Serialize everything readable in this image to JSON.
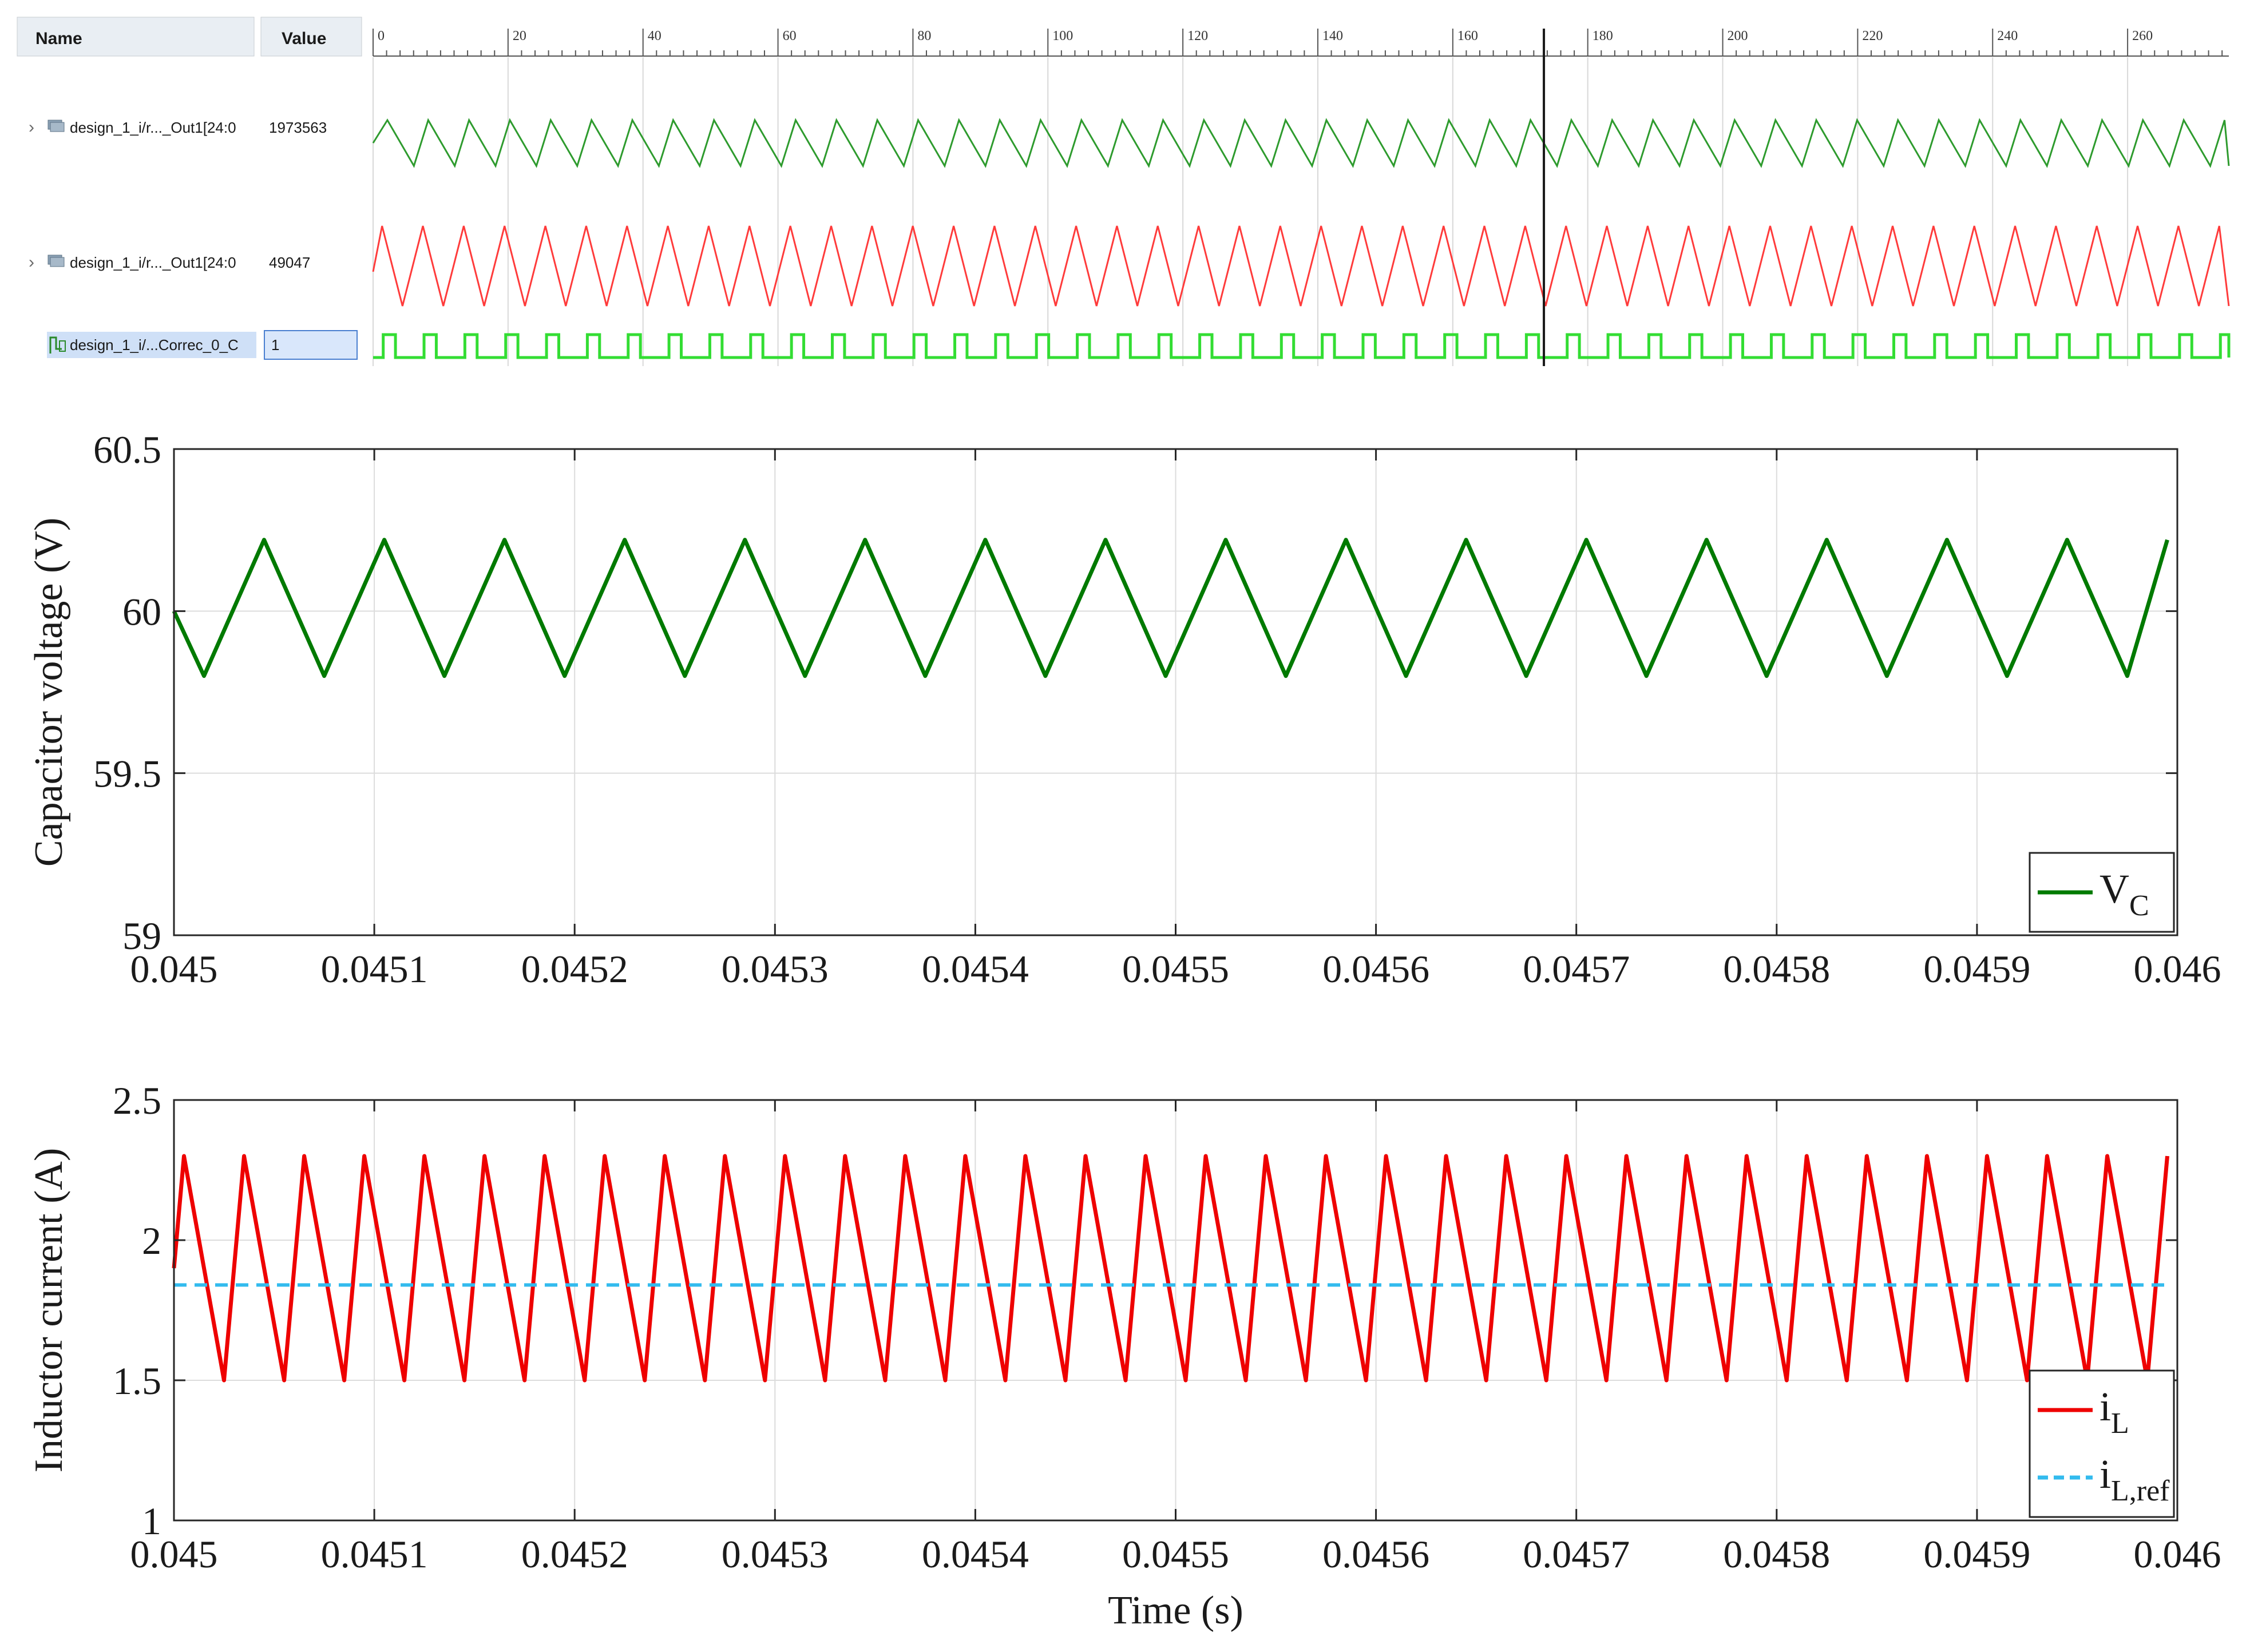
{
  "waveform_viewer": {
    "header": {
      "name_label": "Name",
      "value_label": "Value"
    },
    "ruler_ticks": [
      "0",
      "20",
      "40",
      "60",
      "80",
      "100",
      "120",
      "140",
      "160",
      "180",
      "200",
      "220",
      "240",
      "260"
    ],
    "cursor_tick": 173.5,
    "signals": [
      {
        "name": "design_1_i/r..._Out1[24:0",
        "value": "1973563",
        "icon": "bus-icon",
        "expandable": true,
        "color": "#2e9b2e",
        "shape": "sawtooth-rising"
      },
      {
        "name": "design_1_i/r..._Out1[24:0",
        "value": "49047",
        "icon": "bus-icon",
        "expandable": true,
        "color": "#ff3b3b",
        "shape": "triangle"
      },
      {
        "name": "design_1_i/...Correc_0_C",
        "value": "1",
        "icon": "bit-icon",
        "expandable": false,
        "color": "#33dd33",
        "shape": "pulse",
        "selected": true
      }
    ],
    "waveform_period_ticks": 6.05,
    "waveform_range_ticks": [
      0,
      275
    ]
  },
  "chart_data": [
    {
      "type": "line",
      "title": "",
      "xlabel": "",
      "ylabel": "Capacitor voltage (V)",
      "xlim": [
        0.045,
        0.046
      ],
      "ylim": [
        59,
        60.5
      ],
      "x_ticks": [
        "0.045",
        "0.0451",
        "0.0452",
        "0.0453",
        "0.0454",
        "0.0455",
        "0.0456",
        "0.0457",
        "0.0458",
        "0.0459",
        "0.046"
      ],
      "y_ticks": [
        "59",
        "59.5",
        "60",
        "60.5"
      ],
      "grid": true,
      "legend_position": "bottom-right",
      "series": [
        {
          "name": "V",
          "subscript": "C",
          "color": "#007a00",
          "style": "solid",
          "x": [
            0.045,
            0.045015,
            0.045045,
            0.045075,
            0.045105,
            0.045135,
            0.045165,
            0.045195,
            0.045225,
            0.045255,
            0.045285,
            0.045315,
            0.045345,
            0.045375,
            0.045405,
            0.045435,
            0.045465,
            0.045495,
            0.045525,
            0.045555,
            0.045585,
            0.045615,
            0.045645,
            0.045675,
            0.045705,
            0.045735,
            0.045765,
            0.045795,
            0.045825,
            0.045855,
            0.045885,
            0.045915,
            0.045945,
            0.045975,
            0.045995
          ],
          "y": [
            60.0,
            59.8,
            60.22,
            59.8,
            60.22,
            59.8,
            60.22,
            59.8,
            60.22,
            59.8,
            60.22,
            59.8,
            60.22,
            59.8,
            60.22,
            59.8,
            60.22,
            59.8,
            60.22,
            59.8,
            60.22,
            59.8,
            60.22,
            59.8,
            60.22,
            59.8,
            60.22,
            59.8,
            60.22,
            59.8,
            60.22,
            59.8,
            60.22,
            59.8,
            60.22
          ]
        }
      ]
    },
    {
      "type": "line",
      "title": "",
      "xlabel": "Time (s)",
      "ylabel": "Inductor current (A)",
      "xlim": [
        0.045,
        0.046
      ],
      "ylim": [
        1,
        2.5
      ],
      "x_ticks": [
        "0.045",
        "0.0451",
        "0.0452",
        "0.0453",
        "0.0454",
        "0.0455",
        "0.0456",
        "0.0457",
        "0.0458",
        "0.0459",
        "0.046"
      ],
      "y_ticks": [
        "1",
        "1.5",
        "2",
        "2.5"
      ],
      "grid": true,
      "legend_position": "bottom-right",
      "series": [
        {
          "name": "i",
          "subscript": "L",
          "color": "#ee0000",
          "style": "solid",
          "x": [
            0.045,
            0.045005,
            0.045025,
            0.045035,
            0.045055,
            0.045065,
            0.045085,
            0.045095,
            0.045115,
            0.045125,
            0.045145,
            0.045155,
            0.045175,
            0.045185,
            0.045205,
            0.045215,
            0.045235,
            0.045245,
            0.045265,
            0.045275,
            0.045295,
            0.045305,
            0.045325,
            0.045335,
            0.045355,
            0.045365,
            0.045385,
            0.045395,
            0.045415,
            0.045425,
            0.045445,
            0.045455,
            0.045475,
            0.045485,
            0.045505,
            0.045515,
            0.045535,
            0.045545,
            0.045565,
            0.045575,
            0.045595,
            0.045605,
            0.045625,
            0.045635,
            0.045655,
            0.045665,
            0.045685,
            0.045695,
            0.045715,
            0.045725,
            0.045745,
            0.045755,
            0.045775,
            0.045785,
            0.045805,
            0.045815,
            0.045835,
            0.045845,
            0.045865,
            0.045875,
            0.045895,
            0.045905,
            0.045925,
            0.045935,
            0.045955,
            0.045965,
            0.045985,
            0.045995
          ],
          "y": [
            1.9,
            2.3,
            1.5,
            2.3,
            1.5,
            2.3,
            1.5,
            2.3,
            1.5,
            2.3,
            1.5,
            2.3,
            1.5,
            2.3,
            1.5,
            2.3,
            1.5,
            2.3,
            1.5,
            2.3,
            1.5,
            2.3,
            1.5,
            2.3,
            1.5,
            2.3,
            1.5,
            2.3,
            1.5,
            2.3,
            1.5,
            2.3,
            1.5,
            2.3,
            1.5,
            2.3,
            1.5,
            2.3,
            1.5,
            2.3,
            1.5,
            2.3,
            1.5,
            2.3,
            1.5,
            2.3,
            1.5,
            2.3,
            1.5,
            2.3,
            1.5,
            2.3,
            1.5,
            2.3,
            1.5,
            2.3,
            1.5,
            2.3,
            1.5,
            2.3,
            1.5,
            2.3,
            1.5,
            2.3,
            1.5,
            2.3,
            1.5,
            2.3
          ]
        },
        {
          "name": "i",
          "subscript": "L,ref",
          "color": "#33bbee",
          "style": "dashed",
          "x": [
            0.045,
            0.045995
          ],
          "y": [
            1.84,
            1.84
          ]
        }
      ]
    }
  ]
}
